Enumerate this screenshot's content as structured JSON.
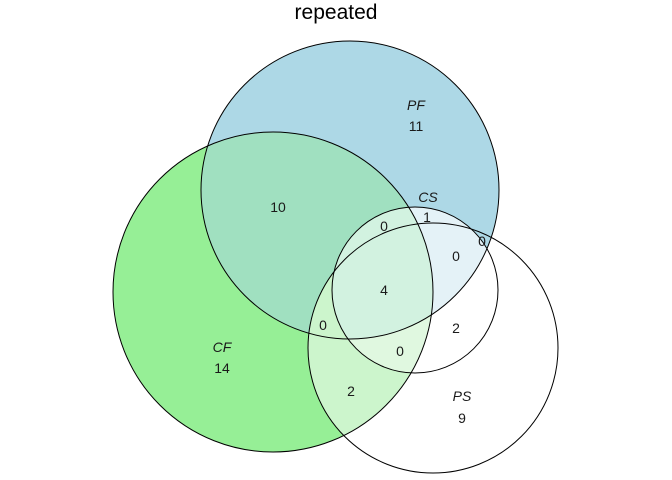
{
  "title": "repeated",
  "sets": [
    {
      "id": "PF",
      "name": "PF",
      "count": "11",
      "fill": "#add8e6"
    },
    {
      "id": "CF",
      "name": "CF",
      "count": "14",
      "fill": "#90ee90"
    },
    {
      "id": "CS",
      "name": "CS",
      "fill": "none"
    },
    {
      "id": "PS",
      "name": "PS",
      "count": "9",
      "fill": "none"
    }
  ],
  "regions": {
    "pf_cf": "10",
    "pf_cs": "1",
    "pf_cf_cs": "0",
    "pf_cs_ps": "0",
    "pf_ps": "0",
    "all": "4",
    "cf_cs_ps_left": "0",
    "cs_ps": "2",
    "cf_cs_ps_bottom": "0",
    "cf_ps": "2"
  },
  "colors": {
    "stroke": "#000000",
    "pf_fill": "#add8e6",
    "cf_fill": "#90ee90",
    "overlap_fill": "#a0e0c0"
  }
}
